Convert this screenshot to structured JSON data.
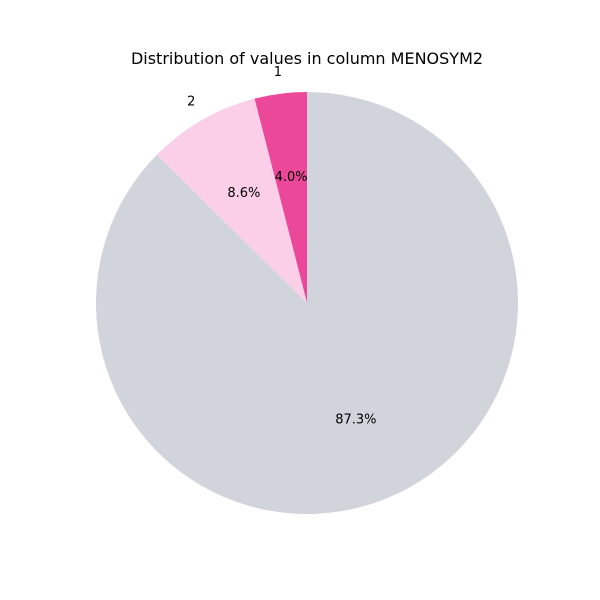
{
  "chart_data": {
    "type": "pie",
    "title": "Distribution of values in column MENOSYM2",
    "start_angle_deg": 90,
    "direction": "counterclockwise",
    "slices": [
      {
        "label": "1",
        "value": 4.0,
        "pct_label": "4.0%",
        "color": "#ec4899"
      },
      {
        "label": "2",
        "value": 8.6,
        "pct_label": "8.6%",
        "color": "#fbcfe8"
      },
      {
        "label": "",
        "value": 87.3,
        "pct_label": "87.3%",
        "color": "#d1d5db"
      }
    ]
  }
}
